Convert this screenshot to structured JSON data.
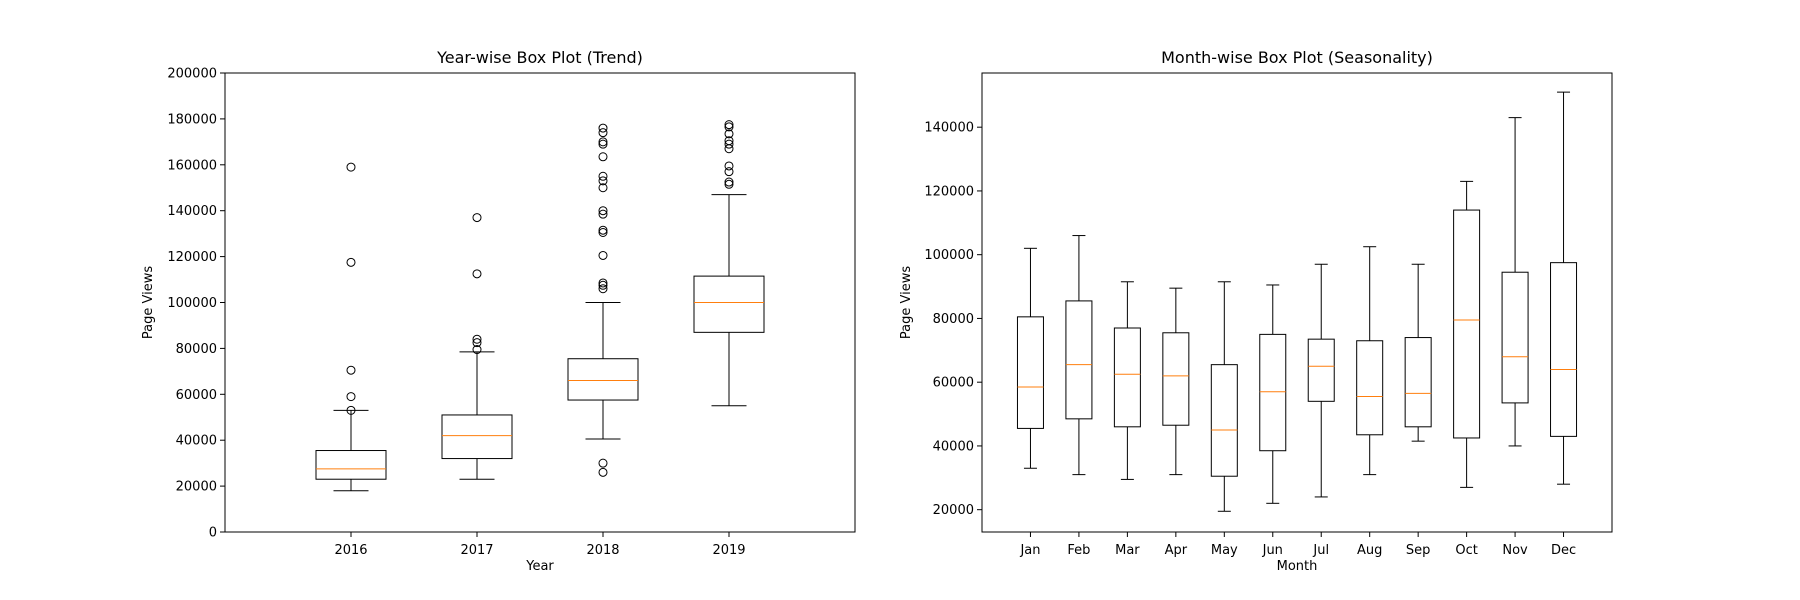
{
  "chart_data": [
    {
      "type": "box",
      "title": "Year-wise Box Plot (Trend)",
      "xlabel": "Year",
      "ylabel": "Page Views",
      "ylim": [
        0,
        200000
      ],
      "yticks": [
        0,
        20000,
        40000,
        60000,
        80000,
        100000,
        120000,
        140000,
        160000,
        180000,
        200000
      ],
      "categories": [
        "2016",
        "2017",
        "2018",
        "2019"
      ],
      "boxes": [
        {
          "whisker_low": 18000,
          "q1": 23000,
          "median": 27500,
          "q3": 35500,
          "whisker_high": 53000,
          "outliers": [
            53000,
            59000,
            70500,
            117500,
            159000
          ]
        },
        {
          "whisker_low": 23000,
          "q1": 32000,
          "median": 42000,
          "q3": 51000,
          "whisker_high": 78500,
          "outliers": [
            79500,
            82500,
            84000,
            112500,
            137000
          ]
        },
        {
          "whisker_low": 40500,
          "q1": 57500,
          "median": 66000,
          "q3": 75500,
          "whisker_high": 100000,
          "outliers": [
            26000,
            30000,
            106000,
            107500,
            108500,
            120500,
            130500,
            131500,
            138500,
            140000,
            150000,
            153000,
            155000,
            163500,
            169000,
            170000,
            174000,
            176000
          ]
        },
        {
          "whisker_low": 55000,
          "q1": 87000,
          "median": 100000,
          "q3": 111500,
          "whisker_high": 147000,
          "outliers": [
            151500,
            152500,
            157000,
            159500,
            167000,
            169000,
            170500,
            173500,
            176500,
            177500
          ]
        }
      ]
    },
    {
      "type": "box",
      "title": "Month-wise Box Plot (Seasonality)",
      "xlabel": "Month",
      "ylabel": "Page Views",
      "ylim": [
        13000,
        157000
      ],
      "yticks": [
        20000,
        40000,
        60000,
        80000,
        100000,
        120000,
        140000
      ],
      "categories": [
        "Jan",
        "Feb",
        "Mar",
        "Apr",
        "May",
        "Jun",
        "Jul",
        "Aug",
        "Sep",
        "Oct",
        "Nov",
        "Dec"
      ],
      "boxes": [
        {
          "whisker_low": 33000,
          "q1": 45500,
          "median": 58500,
          "q3": 80500,
          "whisker_high": 102000,
          "outliers": []
        },
        {
          "whisker_low": 31000,
          "q1": 48500,
          "median": 65500,
          "q3": 85500,
          "whisker_high": 106000,
          "outliers": []
        },
        {
          "whisker_low": 29500,
          "q1": 46000,
          "median": 62500,
          "q3": 77000,
          "whisker_high": 91500,
          "outliers": []
        },
        {
          "whisker_low": 31000,
          "q1": 46500,
          "median": 62000,
          "q3": 75500,
          "whisker_high": 89500,
          "outliers": []
        },
        {
          "whisker_low": 19500,
          "q1": 30500,
          "median": 45000,
          "q3": 65500,
          "whisker_high": 91500,
          "outliers": []
        },
        {
          "whisker_low": 22000,
          "q1": 38500,
          "median": 57000,
          "q3": 75000,
          "whisker_high": 90500,
          "outliers": []
        },
        {
          "whisker_low": 24000,
          "q1": 54000,
          "median": 65000,
          "q3": 73500,
          "whisker_high": 97000,
          "outliers": []
        },
        {
          "whisker_low": 31000,
          "q1": 43500,
          "median": 55500,
          "q3": 73000,
          "whisker_high": 102500,
          "outliers": []
        },
        {
          "whisker_low": 41500,
          "q1": 46000,
          "median": 56500,
          "q3": 74000,
          "whisker_high": 97000,
          "outliers": []
        },
        {
          "whisker_low": 27000,
          "q1": 42500,
          "median": 79500,
          "q3": 114000,
          "whisker_high": 123000,
          "outliers": []
        },
        {
          "whisker_low": 40000,
          "q1": 53500,
          "median": 68000,
          "q3": 94500,
          "whisker_high": 143000,
          "outliers": []
        },
        {
          "whisker_low": 28000,
          "q1": 43000,
          "median": 64000,
          "q3": 97500,
          "whisker_high": 151000,
          "outliers": []
        }
      ]
    }
  ],
  "colors": {
    "box": "#000000",
    "median": "#ff7f0e",
    "background": "#ffffff"
  }
}
